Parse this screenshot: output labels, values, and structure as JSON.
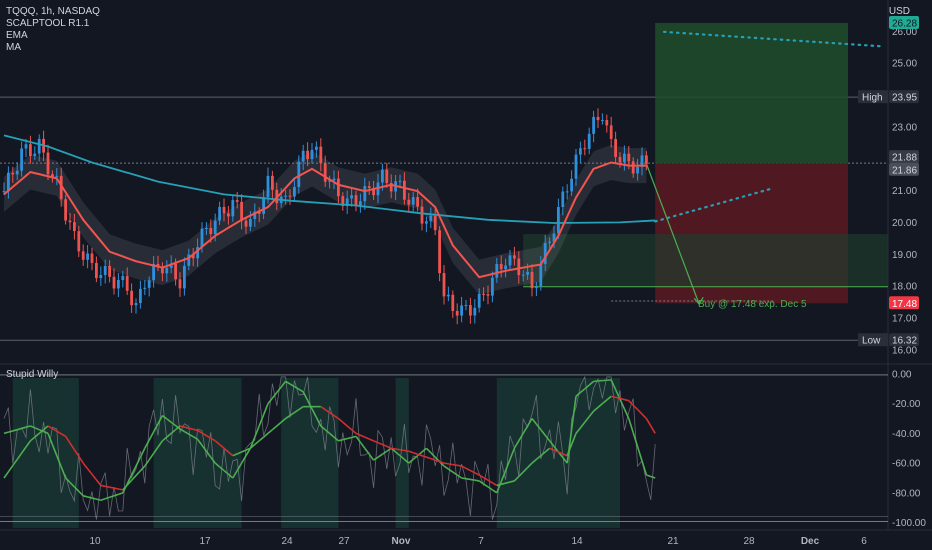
{
  "header": {
    "symbol_line": "TQQQ, 1h, NASDAQ",
    "indicators": [
      "SCALPTOOL R1.1",
      "EMA",
      "MA"
    ],
    "currency": "USD"
  },
  "subpane": {
    "title": "Stupid Willy"
  },
  "annotation": {
    "text": "Buy @ 17.48 exp. Dec 5"
  },
  "colors": {
    "background": "#131722",
    "up": "#2f8fdb",
    "down": "#ef5350",
    "ema": "#f2554f",
    "ma": "#26a0b6",
    "profit_zone": "#1e4d2b",
    "loss_zone": "#5c1a22",
    "osc_up": "#4caf50",
    "osc_down": "#d32f2f"
  },
  "chart_data": [
    {
      "type": "candlestick",
      "title": "TQQQ, 1h, NASDAQ",
      "currency": "USD",
      "ylim": [
        15.7,
        27.0
      ],
      "y_ticks": [
        "26.00",
        "25.00",
        "24.00",
        "23.00",
        "22.00",
        "21.00",
        "20.00",
        "19.00",
        "18.00",
        "17.00",
        "16.00"
      ],
      "x_ticks": [
        "10",
        "17",
        "24",
        "27",
        "Nov",
        "7",
        "14",
        "21",
        "28",
        "Dec",
        "6"
      ],
      "price_labels": [
        {
          "label": "",
          "value": "26.28",
          "kind": "target"
        },
        {
          "label": "High",
          "value": "23.95",
          "kind": "high"
        },
        {
          "label": "",
          "value": "21.88",
          "kind": "last"
        },
        {
          "label": "",
          "value": "21.86",
          "kind": "last2"
        },
        {
          "label": "",
          "value": "17.48",
          "kind": "stop"
        },
        {
          "label": "Low",
          "value": "16.32",
          "kind": "low"
        }
      ],
      "short_position": {
        "entry": 21.88,
        "target": 17.48,
        "stop": 26.28,
        "start": "Nov 17",
        "end": "Dec 5"
      },
      "trend_lines": [
        {
          "from": [
            150,
            26.0
          ],
          "to": [
            199,
            25.55
          ],
          "style": "dotted"
        },
        {
          "from": [
            148,
            20.05
          ],
          "to": [
            175,
            21.1
          ],
          "style": "dotted"
        }
      ],
      "ma_200": [
        [
          0,
          22.75
        ],
        [
          10,
          22.4
        ],
        [
          20,
          21.9
        ],
        [
          35,
          21.3
        ],
        [
          50,
          20.9
        ],
        [
          65,
          20.7
        ],
        [
          80,
          20.55
        ],
        [
          95,
          20.3
        ],
        [
          110,
          20.1
        ],
        [
          125,
          20.0
        ],
        [
          140,
          20.02
        ],
        [
          148,
          20.08
        ]
      ],
      "series_close_approx": [
        [
          0,
          21.0
        ],
        [
          4,
          22.2
        ],
        [
          8,
          22.4
        ],
        [
          12,
          21.2
        ],
        [
          16,
          19.5
        ],
        [
          20,
          18.6
        ],
        [
          24,
          18.3
        ],
        [
          28,
          18.0
        ],
        [
          30,
          17.3
        ],
        [
          32,
          18.2
        ],
        [
          36,
          18.7
        ],
        [
          40,
          18.2
        ],
        [
          44,
          19.4
        ],
        [
          48,
          20.1
        ],
        [
          52,
          20.6
        ],
        [
          56,
          19.9
        ],
        [
          60,
          21.2
        ],
        [
          64,
          20.6
        ],
        [
          68,
          22.1
        ],
        [
          70,
          22.4
        ],
        [
          74,
          21.3
        ],
        [
          78,
          20.6
        ],
        [
          82,
          20.9
        ],
        [
          86,
          21.4
        ],
        [
          90,
          21.1
        ],
        [
          94,
          20.4
        ],
        [
          98,
          19.8
        ],
        [
          100,
          17.6
        ],
        [
          104,
          17.2
        ],
        [
          108,
          17.5
        ],
        [
          110,
          18.0
        ],
        [
          114,
          18.9
        ],
        [
          118,
          18.5
        ],
        [
          120,
          17.9
        ],
        [
          124,
          19.5
        ],
        [
          128,
          21.2
        ],
        [
          132,
          22.6
        ],
        [
          136,
          23.5
        ],
        [
          138,
          22.4
        ],
        [
          142,
          21.8
        ],
        [
          146,
          21.86
        ]
      ],
      "ema": [
        [
          0,
          20.9
        ],
        [
          6,
          21.6
        ],
        [
          12,
          21.4
        ],
        [
          18,
          20.1
        ],
        [
          24,
          19.1
        ],
        [
          30,
          18.8
        ],
        [
          36,
          18.6
        ],
        [
          42,
          18.9
        ],
        [
          48,
          19.6
        ],
        [
          54,
          20.1
        ],
        [
          60,
          20.5
        ],
        [
          66,
          21.4
        ],
        [
          70,
          21.7
        ],
        [
          76,
          21.2
        ],
        [
          82,
          21.0
        ],
        [
          88,
          21.2
        ],
        [
          94,
          21.0
        ],
        [
          98,
          20.5
        ],
        [
          102,
          19.3
        ],
        [
          108,
          18.3
        ],
        [
          114,
          18.5
        ],
        [
          118,
          18.6
        ],
        [
          122,
          18.7
        ],
        [
          126,
          19.6
        ],
        [
          130,
          20.8
        ],
        [
          134,
          21.7
        ],
        [
          138,
          21.9
        ],
        [
          142,
          21.8
        ],
        [
          146,
          21.8
        ]
      ]
    },
    {
      "type": "line",
      "title": "Stupid Willy",
      "ylim": [
        -105,
        4
      ],
      "y_ticks": [
        "0.00",
        "-20.00",
        "-40.00",
        "-60.00",
        "-80.00",
        "-100.00"
      ],
      "series": [
        {
          "values": [
            [
              0,
              -40
            ],
            [
              6,
              -35
            ],
            [
              10,
              -40
            ],
            [
              14,
              -70
            ],
            [
              18,
              -82
            ],
            [
              22,
              -85
            ],
            [
              27,
              -80
            ],
            [
              32,
              -50
            ],
            [
              36,
              -28
            ],
            [
              40,
              -37
            ],
            [
              44,
              -44
            ],
            [
              48,
              -60
            ],
            [
              52,
              -70
            ],
            [
              56,
              -50
            ],
            [
              60,
              -20
            ],
            [
              64,
              -5
            ],
            [
              68,
              -12
            ],
            [
              72,
              -35
            ],
            [
              76,
              -45
            ],
            [
              80,
              -42
            ],
            [
              84,
              -58
            ],
            [
              88,
              -50
            ],
            [
              92,
              -60
            ],
            [
              96,
              -50
            ],
            [
              100,
              -62
            ],
            [
              104,
              -70
            ],
            [
              108,
              -72
            ],
            [
              112,
              -80
            ],
            [
              116,
              -50
            ],
            [
              120,
              -30
            ],
            [
              124,
              -45
            ],
            [
              128,
              -60
            ],
            [
              130,
              -15
            ],
            [
              134,
              -5
            ],
            [
              138,
              -4
            ],
            [
              142,
              -30
            ],
            [
              146,
              -68
            ],
            [
              148,
              -70
            ]
          ]
        },
        {
          "values": [
            [
              0,
              -70
            ],
            [
              6,
              -45
            ],
            [
              10,
              -35
            ],
            [
              14,
              -42
            ],
            [
              18,
              -60
            ],
            [
              22,
              -75
            ],
            [
              27,
              -78
            ],
            [
              32,
              -62
            ],
            [
              36,
              -45
            ],
            [
              40,
              -35
            ],
            [
              44,
              -38
            ],
            [
              48,
              -45
            ],
            [
              52,
              -55
            ],
            [
              56,
              -50
            ],
            [
              60,
              -40
            ],
            [
              64,
              -30
            ],
            [
              68,
              -22
            ],
            [
              72,
              -22
            ],
            [
              76,
              -30
            ],
            [
              80,
              -40
            ],
            [
              84,
              -45
            ],
            [
              88,
              -50
            ],
            [
              92,
              -52
            ],
            [
              96,
              -56
            ],
            [
              100,
              -60
            ],
            [
              104,
              -62
            ],
            [
              108,
              -68
            ],
            [
              112,
              -75
            ],
            [
              116,
              -72
            ],
            [
              120,
              -60
            ],
            [
              124,
              -50
            ],
            [
              128,
              -55
            ],
            [
              130,
              -40
            ],
            [
              134,
              -25
            ],
            [
              138,
              -15
            ],
            [
              142,
              -18
            ],
            [
              146,
              -30
            ],
            [
              148,
              -40
            ]
          ]
        }
      ]
    }
  ]
}
